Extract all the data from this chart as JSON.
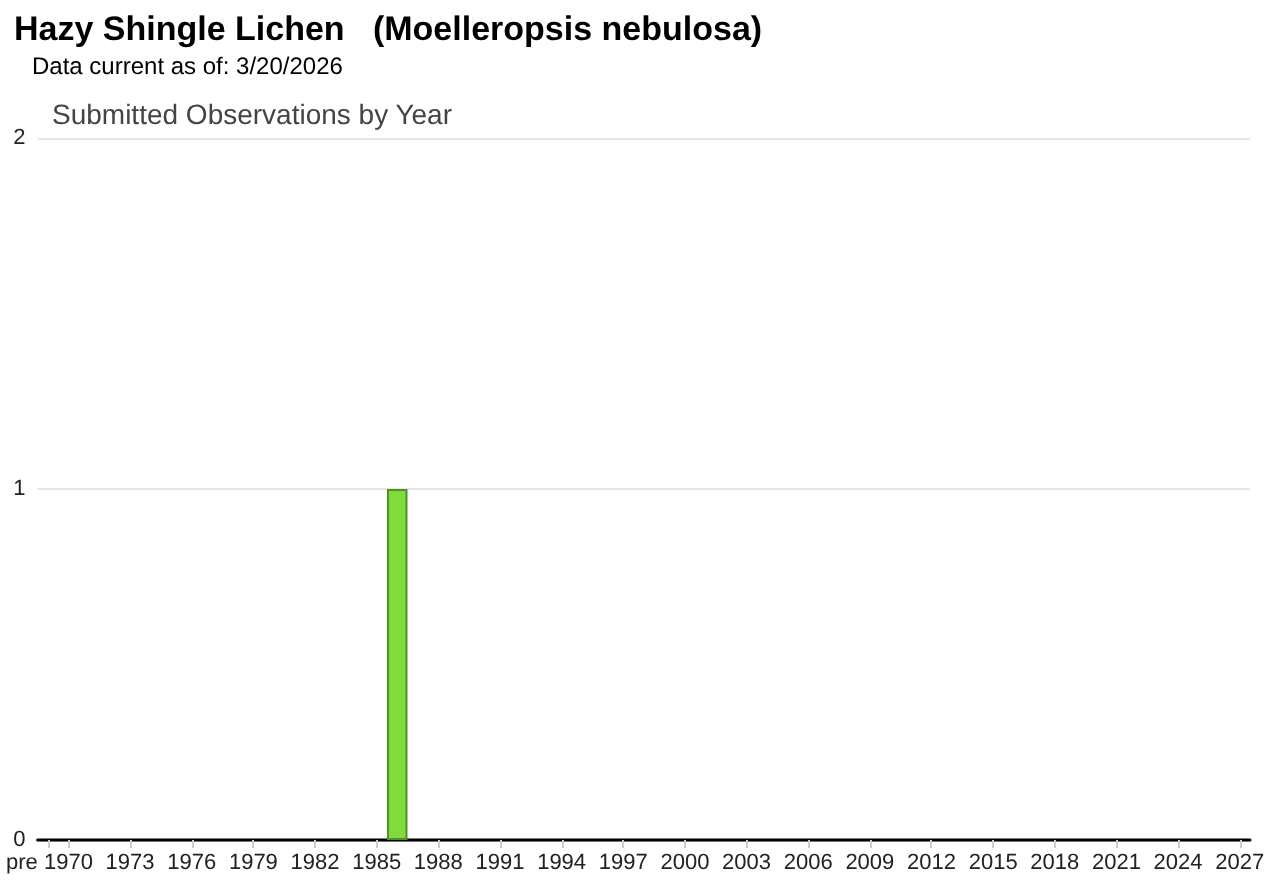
{
  "chart_data": {
    "type": "bar",
    "title": "Hazy Shingle Lichen   (Moelleropsis nebulosa)",
    "subtitle": "Submitted Observations by Year",
    "annotations": [
      "Data current as of: 3/20/2026"
    ],
    "categories": [
      "pre",
      "1970",
      null,
      null,
      "1973",
      null,
      null,
      "1976",
      null,
      null,
      "1979",
      null,
      null,
      "1982",
      null,
      null,
      "1985",
      null,
      null,
      "1988",
      null,
      null,
      "1991",
      null,
      null,
      "1994",
      null,
      null,
      "1997",
      null,
      null,
      "2000",
      null,
      null,
      "2003",
      null,
      null,
      "2006",
      null,
      null,
      "2009",
      null,
      null,
      "2012",
      null,
      null,
      "2015",
      null,
      null,
      "2018",
      null,
      null,
      "2021",
      null,
      null,
      "2024",
      null,
      null,
      "2027"
    ],
    "values": [
      0,
      0,
      0,
      0,
      0,
      0,
      0,
      0,
      0,
      0,
      0,
      0,
      0,
      0,
      0,
      0,
      0,
      1,
      0,
      0,
      0,
      0,
      0,
      0,
      0,
      0,
      0,
      0,
      0,
      0,
      0,
      0,
      0,
      0,
      0,
      0,
      0,
      0,
      0,
      0,
      0,
      0,
      0,
      0,
      0,
      0,
      0,
      0,
      0,
      0,
      0,
      0,
      0,
      0,
      0,
      0,
      0,
      0,
      0
    ],
    "color": "#7fdc3c",
    "ylim": [
      0,
      2
    ],
    "yticks": [
      0,
      1,
      2
    ],
    "grid": "y"
  }
}
